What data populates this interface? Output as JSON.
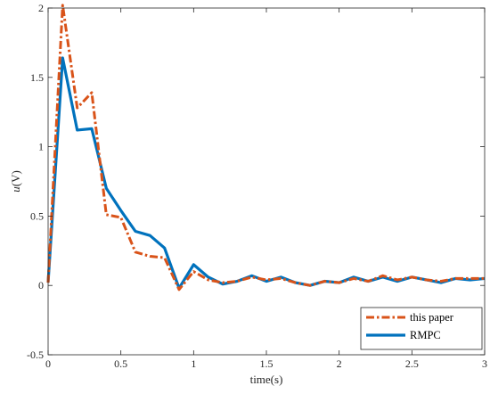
{
  "chart_data": {
    "type": "line",
    "xlabel": "time(s)",
    "ylabel_var": "u",
    "ylabel_unit": "(V)",
    "xlim": [
      0,
      3
    ],
    "ylim": [
      -0.5,
      2
    ],
    "xticks": [
      0,
      0.5,
      1,
      1.5,
      2,
      2.5,
      3
    ],
    "yticks": [
      -0.5,
      0,
      0.5,
      1,
      1.5,
      2
    ],
    "xtick_labels": [
      "0",
      "0.5",
      "1",
      "1.5",
      "2",
      "2.5",
      "3"
    ],
    "ytick_labels": [
      "-0.5",
      "0",
      "0.5",
      "1",
      "1.5",
      "2"
    ],
    "grid": false,
    "legend_position": "bottom-right",
    "series": [
      {
        "name": "this paper",
        "color": "#D95319",
        "style": "dash-dot",
        "x": [
          0,
          0.1,
          0.2,
          0.3,
          0.4,
          0.5,
          0.6,
          0.7,
          0.8,
          0.9,
          1.0,
          1.1,
          1.2,
          1.3,
          1.4,
          1.5,
          1.6,
          1.7,
          1.8,
          1.9,
          2.0,
          2.1,
          2.2,
          2.3,
          2.4,
          2.5,
          2.6,
          2.7,
          2.8,
          2.9,
          3.0
        ],
        "y": [
          0.02,
          2.02,
          1.28,
          1.39,
          0.51,
          0.49,
          0.24,
          0.21,
          0.2,
          -0.03,
          0.1,
          0.04,
          0.02,
          0.03,
          0.06,
          0.04,
          0.05,
          0.02,
          0.0,
          0.03,
          0.02,
          0.05,
          0.03,
          0.07,
          0.04,
          0.06,
          0.04,
          0.03,
          0.05,
          0.05,
          0.05
        ]
      },
      {
        "name": "RMPC",
        "color": "#0072BD",
        "style": "solid",
        "x": [
          0,
          0.1,
          0.2,
          0.3,
          0.4,
          0.5,
          0.6,
          0.7,
          0.8,
          0.9,
          1.0,
          1.1,
          1.2,
          1.3,
          1.4,
          1.5,
          1.6,
          1.7,
          1.8,
          1.9,
          2.0,
          2.1,
          2.2,
          2.3,
          2.4,
          2.5,
          2.6,
          2.7,
          2.8,
          2.9,
          3.0
        ],
        "y": [
          0.02,
          1.64,
          1.12,
          1.13,
          0.7,
          0.54,
          0.39,
          0.36,
          0.27,
          -0.02,
          0.15,
          0.06,
          0.01,
          0.03,
          0.07,
          0.03,
          0.06,
          0.02,
          0.0,
          0.03,
          0.02,
          0.06,
          0.03,
          0.06,
          0.03,
          0.06,
          0.04,
          0.02,
          0.05,
          0.04,
          0.05
        ]
      }
    ]
  }
}
